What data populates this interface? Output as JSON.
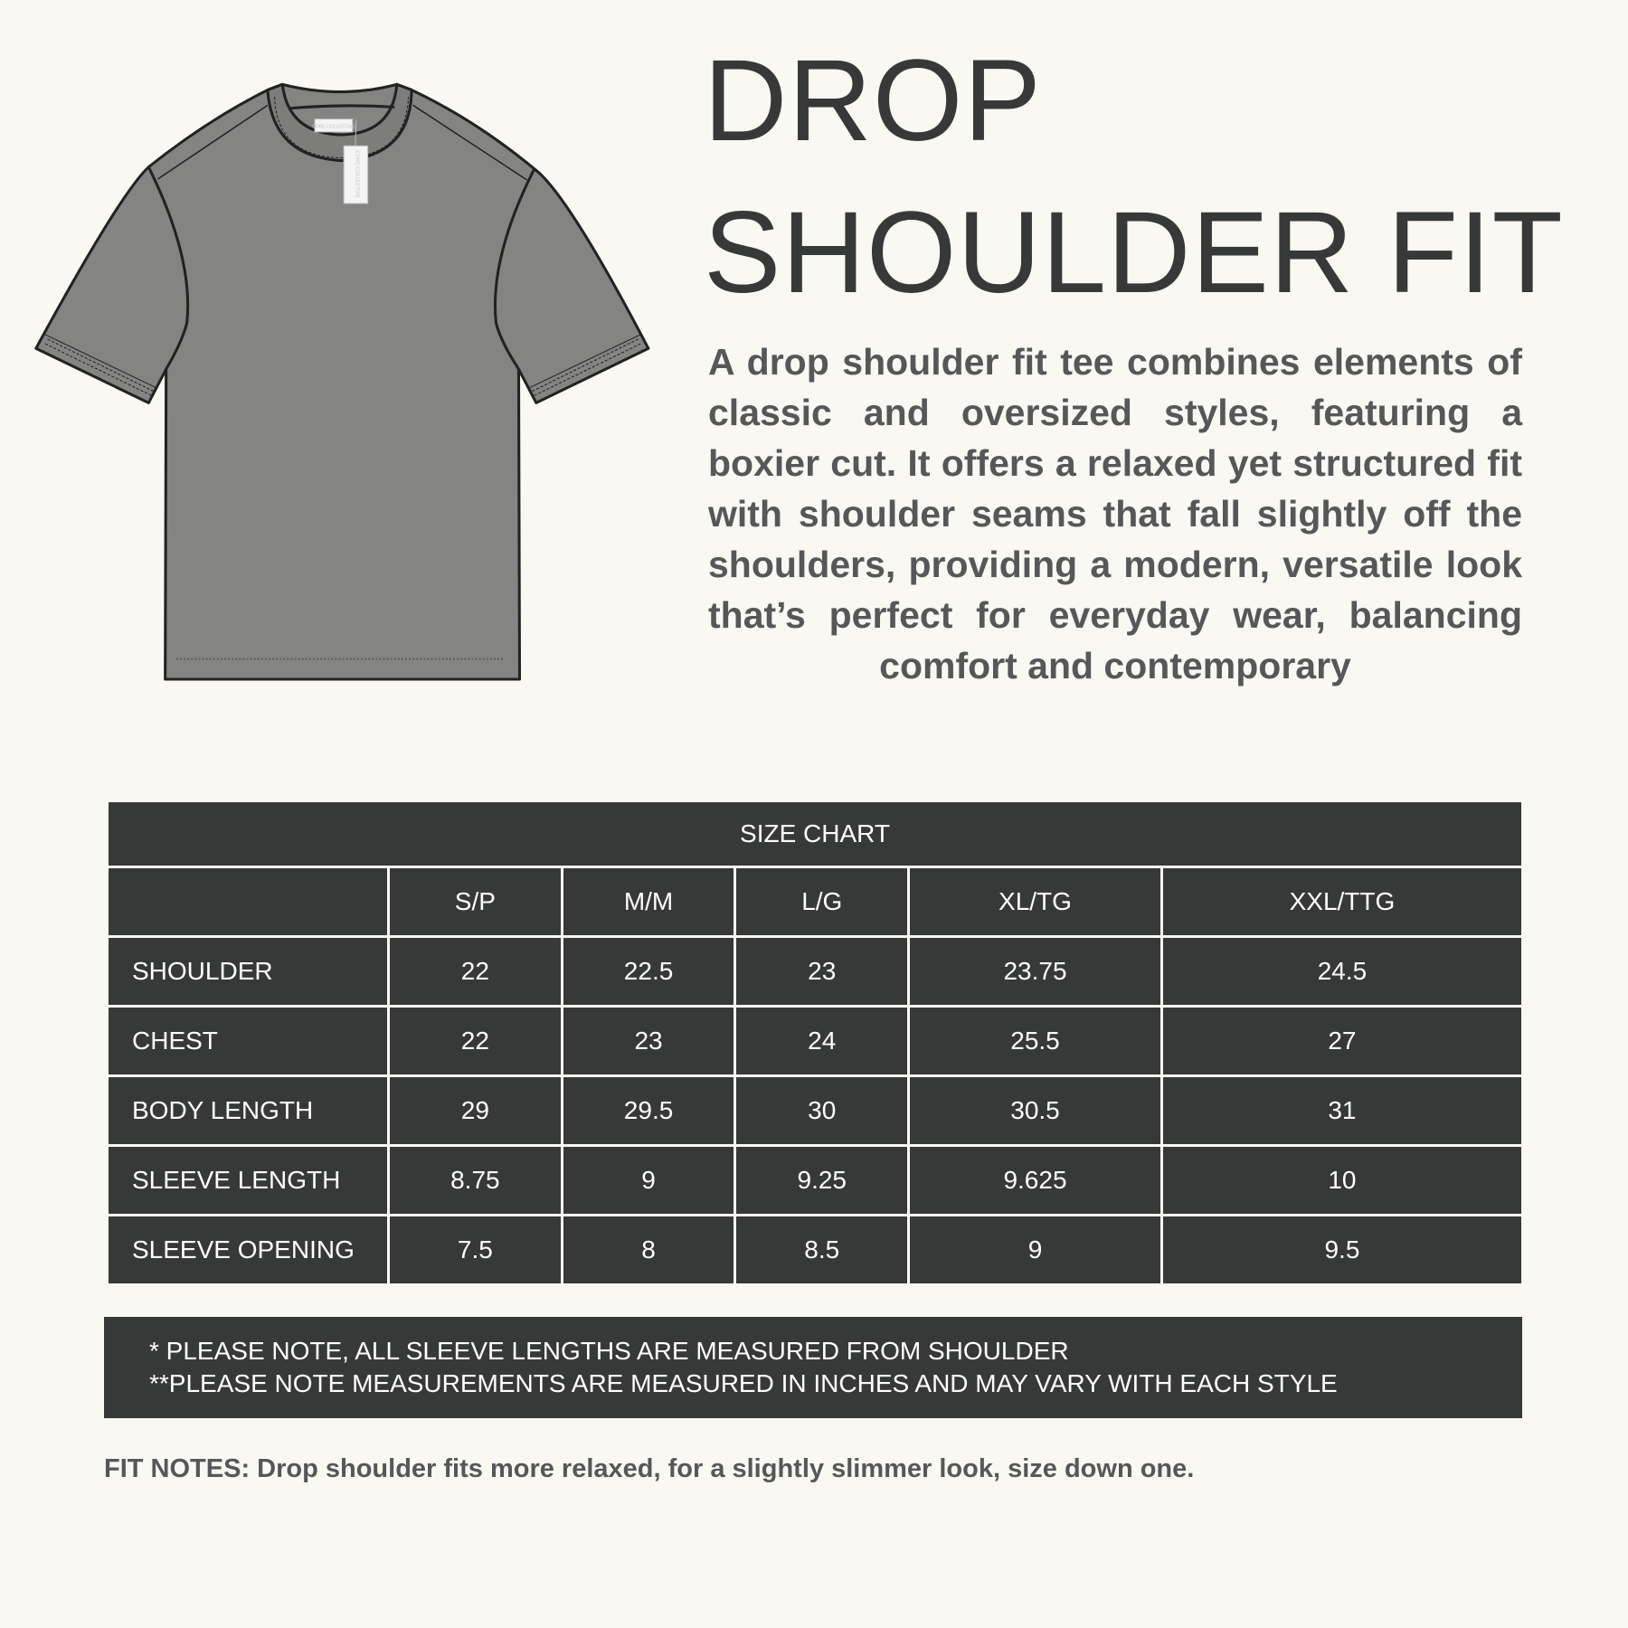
{
  "title": {
    "line1": "DROP",
    "line2": "SHOULDER FIT"
  },
  "description": "A drop shoulder fit tee combines elements of classic and oversized styles, featuring a boxier cut. It offers a relaxed yet structured fit with shoulder seams that fall slightly off the shoulders, providing a modern, versatile look that’s perfect for everyday wear, balancing comfort and contemporary",
  "illustration": {
    "name": "t-shirt-flat-sketch",
    "tag_text": "CORE COLLECTIVE",
    "fill": "#848483",
    "stroke": "#222222"
  },
  "size_chart": {
    "caption": "SIZE CHART",
    "columns": [
      "",
      "S/P",
      "M/M",
      "L/G",
      "XL/TG",
      "XXL/TTG"
    ],
    "rows": [
      {
        "label": "SHOULDER",
        "values": [
          "22",
          "22.5",
          "23",
          "23.75",
          "24.5"
        ]
      },
      {
        "label": "CHEST",
        "values": [
          "22",
          "23",
          "24",
          "25.5",
          "27"
        ]
      },
      {
        "label": "BODY LENGTH",
        "values": [
          "29",
          "29.5",
          "30",
          "30.5",
          "31"
        ]
      },
      {
        "label": "SLEEVE LENGTH",
        "values": [
          "8.75",
          "9",
          "9.25",
          "9.625",
          "10"
        ]
      },
      {
        "label": "SLEEVE OPENING",
        "values": [
          "7.5",
          "8",
          "8.5",
          "9",
          "9.5"
        ]
      }
    ]
  },
  "notes": [
    "* PLEASE NOTE, ALL SLEEVE LENGTHS ARE MEASURED FROM SHOULDER",
    "**PLEASE NOTE MEASUREMENTS ARE MEASURED IN INCHES AND MAY  VARY WITH EACH STYLE"
  ],
  "fit_notes": "FIT NOTES: Drop shoulder fits more relaxed, for a slightly slimmer look, size down one.",
  "colors": {
    "background": "#f9f8f3",
    "dark": "#373938",
    "text_gray": "#555759"
  }
}
